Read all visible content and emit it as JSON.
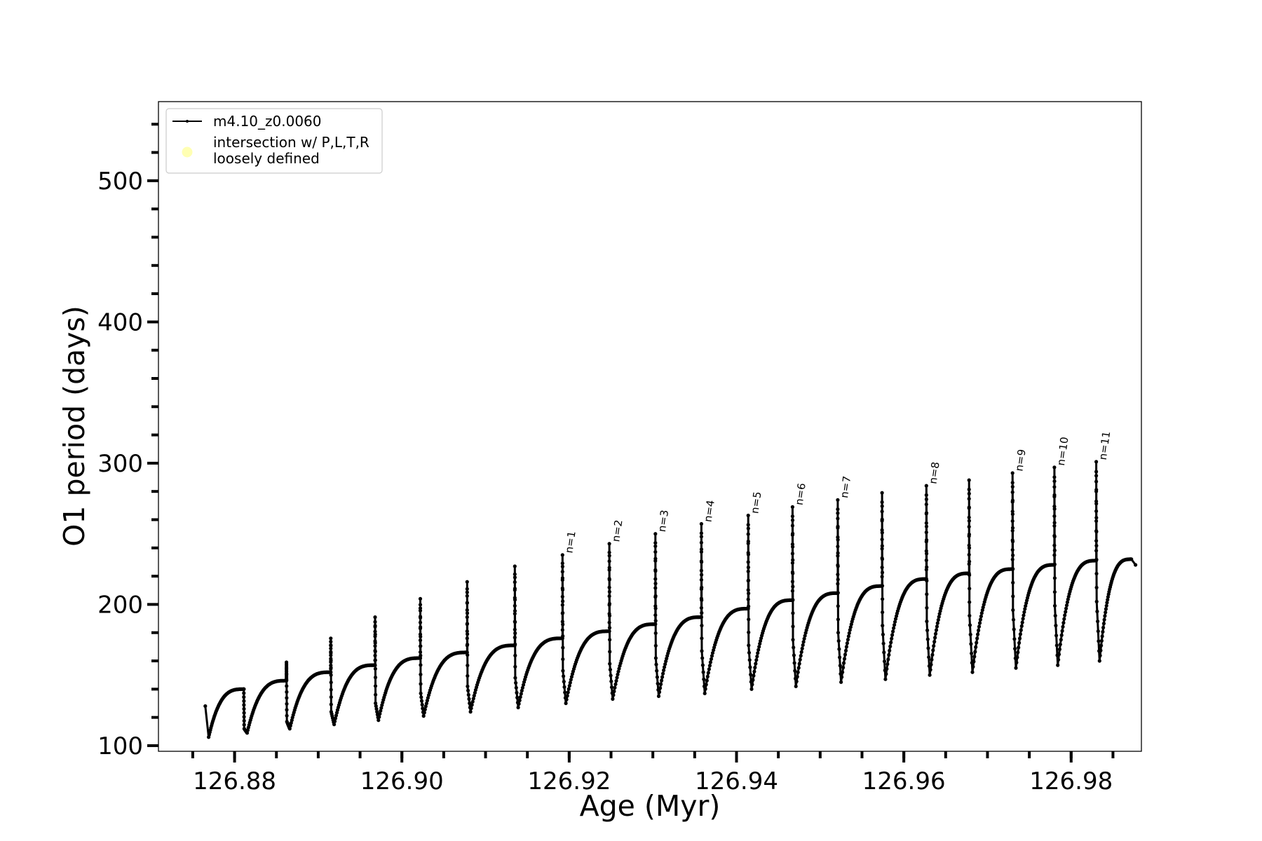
{
  "chart_data": {
    "type": "line",
    "title": "",
    "xlabel": "Age (Myr)",
    "ylabel": "O1 period (days)",
    "xlim": [
      126.8709,
      126.9884
    ],
    "ylim": [
      96,
      556
    ],
    "x_major_ticks": [
      126.88,
      126.9,
      126.92,
      126.94,
      126.96,
      126.98
    ],
    "x_tick_labels": [
      "126.88",
      "126.90",
      "126.92",
      "126.94",
      "126.96",
      "126.98"
    ],
    "x_minor_step": 0.005,
    "y_major_ticks": [
      100,
      200,
      300,
      400,
      500
    ],
    "y_tick_labels": [
      "100",
      "200",
      "300",
      "400",
      "500"
    ],
    "y_minor_step": 20,
    "grid": false,
    "legend": {
      "placement": "upper-left",
      "entries": [
        {
          "label": "m4.10_z0.0060",
          "style": "black line with dot markers"
        },
        {
          "label": "intersection w/ P,L,T,R\nloosely defined",
          "style": "pale yellow circle",
          "color": "#ffffb3"
        }
      ]
    },
    "series": [
      {
        "name": "m4.10_z0.0060",
        "color": "#000000",
        "start": {
          "age": 126.8765,
          "period": 128,
          "min_age": 126.8769,
          "min_period": 106
        },
        "pulses": [
          {
            "age": 126.8811,
            "plateau": 140,
            "peak": 140,
            "foot": 112,
            "minimum": 109,
            "label": ""
          },
          {
            "age": 126.8862,
            "plateau": 146,
            "peak": 159,
            "foot": 117,
            "minimum": 112,
            "label": ""
          },
          {
            "age": 126.8915,
            "plateau": 152,
            "peak": 176,
            "foot": 124,
            "minimum": 115,
            "label": ""
          },
          {
            "age": 126.8968,
            "plateau": 157,
            "peak": 191,
            "foot": 130,
            "minimum": 118,
            "label": ""
          },
          {
            "age": 126.9022,
            "plateau": 162,
            "peak": 204,
            "foot": 137,
            "minimum": 121,
            "label": ""
          },
          {
            "age": 126.9078,
            "plateau": 166,
            "peak": 216,
            "foot": 142,
            "minimum": 124,
            "label": ""
          },
          {
            "age": 126.9135,
            "plateau": 171,
            "peak": 227,
            "foot": 148,
            "minimum": 127,
            "label": ""
          },
          {
            "age": 126.9192,
            "plateau": 176,
            "peak": 235,
            "foot": 153,
            "minimum": 130,
            "label": "n=1"
          },
          {
            "age": 126.9248,
            "plateau": 181,
            "peak": 243,
            "foot": 158,
            "minimum": 133,
            "label": "n=2"
          },
          {
            "age": 126.9303,
            "plateau": 186,
            "peak": 250,
            "foot": 162,
            "minimum": 135,
            "label": "n=3"
          },
          {
            "age": 126.9358,
            "plateau": 191,
            "peak": 257,
            "foot": 167,
            "minimum": 137,
            "label": "n=4"
          },
          {
            "age": 126.9414,
            "plateau": 197,
            "peak": 263,
            "foot": 171,
            "minimum": 140,
            "label": "n=5"
          },
          {
            "age": 126.9467,
            "plateau": 203,
            "peak": 269,
            "foot": 175,
            "minimum": 142,
            "label": "n=6"
          },
          {
            "age": 126.9521,
            "plateau": 208,
            "peak": 274,
            "foot": 180,
            "minimum": 145,
            "label": "n=7"
          },
          {
            "age": 126.9574,
            "plateau": 213,
            "peak": 279,
            "foot": 185,
            "minimum": 147,
            "label": ""
          },
          {
            "age": 126.9627,
            "plateau": 218,
            "peak": 284,
            "foot": 188,
            "minimum": 150,
            "label": "n=8"
          },
          {
            "age": 126.9678,
            "plateau": 222,
            "peak": 288,
            "foot": 192,
            "minimum": 152,
            "label": ""
          },
          {
            "age": 126.973,
            "plateau": 225,
            "peak": 293,
            "foot": 196,
            "minimum": 155,
            "label": "n=9"
          },
          {
            "age": 126.978,
            "plateau": 228,
            "peak": 297,
            "foot": 199,
            "minimum": 157,
            "label": "n=10"
          },
          {
            "age": 126.983,
            "plateau": 231,
            "peak": 301,
            "foot": 202,
            "minimum": 160,
            "label": "n=11"
          }
        ],
        "end": {
          "plateau_age": 126.9872,
          "plateau": 232,
          "age": 126.9877,
          "period": 228
        }
      }
    ]
  }
}
